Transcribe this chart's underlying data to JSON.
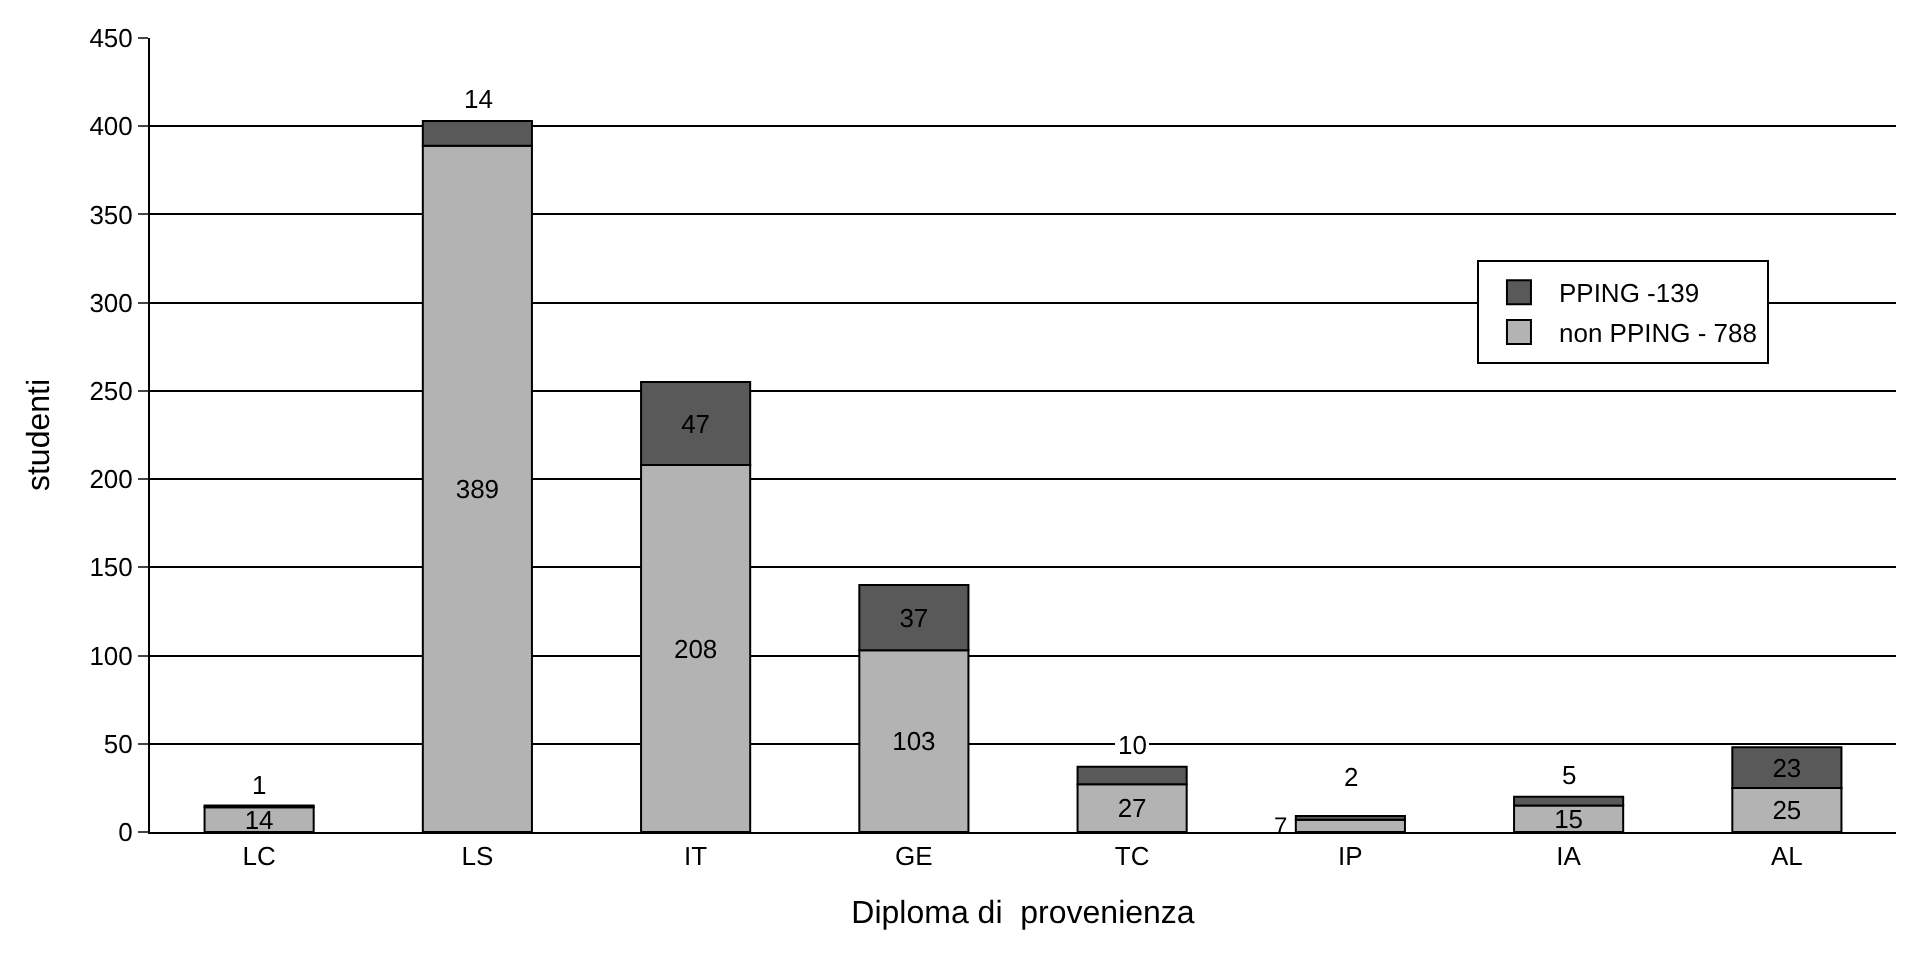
{
  "chart_data": {
    "type": "bar",
    "stacked": true,
    "xlabel": "Diploma di  provenienza",
    "ylabel": "studenti",
    "categories": [
      "LC",
      "LS",
      "IT",
      "GE",
      "TC",
      "IP",
      "IA",
      "AL"
    ],
    "series": [
      {
        "name": "non PPING - 788",
        "color": "#b3b3b3",
        "values": [
          14,
          389,
          208,
          103,
          27,
          7,
          15,
          25
        ]
      },
      {
        "name": "PPING -139",
        "color": "#595959",
        "values": [
          1,
          14,
          47,
          37,
          10,
          2,
          5,
          23
        ]
      }
    ],
    "ylim": [
      0,
      450
    ],
    "yticks": [
      0,
      50,
      100,
      150,
      200,
      250,
      300,
      350,
      400,
      450
    ],
    "grid": "y",
    "legend": "top right",
    "data_labels": true
  }
}
